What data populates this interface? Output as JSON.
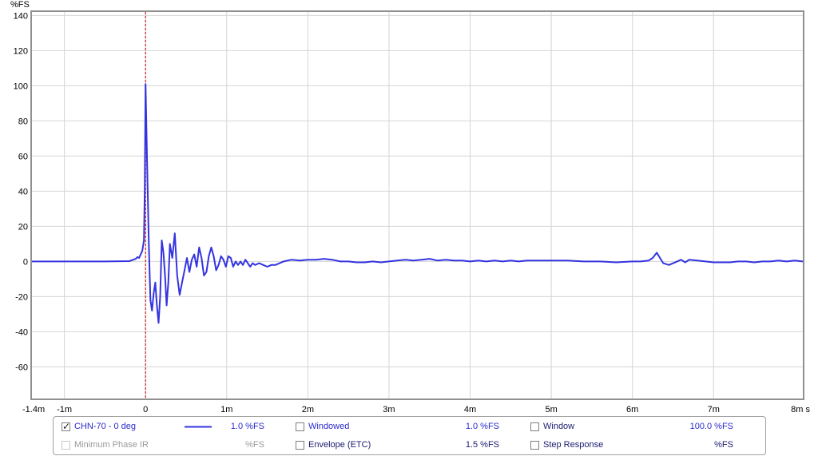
{
  "chart_data": {
    "type": "line",
    "ylabel": "%FS",
    "xunit": "s",
    "xlim": [
      -0.0014,
      0.0081
    ],
    "ylim": [
      -78,
      142
    ],
    "grid": true,
    "yticks": [
      140,
      120,
      100,
      80,
      60,
      40,
      20,
      0,
      -20,
      -40,
      -60
    ],
    "xticks": [
      {
        "v": -0.0014,
        "label": "-1.4m"
      },
      {
        "v": -0.001,
        "label": "-1m"
      },
      {
        "v": 0,
        "label": "0"
      },
      {
        "v": 0.001,
        "label": "1m"
      },
      {
        "v": 0.002,
        "label": "2m"
      },
      {
        "v": 0.003,
        "label": "3m"
      },
      {
        "v": 0.004,
        "label": "4m"
      },
      {
        "v": 0.005,
        "label": "5m"
      },
      {
        "v": 0.006,
        "label": "6m"
      },
      {
        "v": 0.007,
        "label": "7m"
      },
      {
        "v": 0.0081,
        "label": "8m s"
      }
    ],
    "cursor_x": 0,
    "series": [
      {
        "name": "CHN-70 - 0 deg",
        "color": "#3434e0",
        "points": [
          [
            -0.0014,
            0
          ],
          [
            -0.001,
            0
          ],
          [
            -0.0005,
            0
          ],
          [
            -0.0002,
            0.2
          ],
          [
            -0.00012,
            1.5
          ],
          [
            -0.0001,
            2.5
          ],
          [
            -8e-05,
            2
          ],
          [
            -6e-05,
            4
          ],
          [
            -4e-05,
            6
          ],
          [
            -2e-05,
            12
          ],
          [
            -1e-05,
            40
          ],
          [
            0.0,
            101
          ],
          [
            2e-05,
            55
          ],
          [
            4e-05,
            10
          ],
          [
            6e-05,
            -22
          ],
          [
            8e-05,
            -28
          ],
          [
            0.0001,
            -18
          ],
          [
            0.00012,
            -12
          ],
          [
            0.00014,
            -25
          ],
          [
            0.00016,
            -35
          ],
          [
            0.00018,
            -20
          ],
          [
            0.0002,
            12
          ],
          [
            0.00022,
            5
          ],
          [
            0.00024,
            -8
          ],
          [
            0.00026,
            -25
          ],
          [
            0.00028,
            -12
          ],
          [
            0.0003,
            10
          ],
          [
            0.00033,
            2
          ],
          [
            0.00036,
            16
          ],
          [
            0.00039,
            -8
          ],
          [
            0.00042,
            -19
          ],
          [
            0.00045,
            -12
          ],
          [
            0.00048,
            -5
          ],
          [
            0.00051,
            2
          ],
          [
            0.00054,
            -6
          ],
          [
            0.00057,
            1
          ],
          [
            0.0006,
            4
          ],
          [
            0.00063,
            -3
          ],
          [
            0.00066,
            8
          ],
          [
            0.00069,
            2
          ],
          [
            0.00072,
            -8
          ],
          [
            0.00075,
            -6
          ],
          [
            0.00078,
            3
          ],
          [
            0.00081,
            8
          ],
          [
            0.00084,
            3
          ],
          [
            0.00087,
            -5
          ],
          [
            0.0009,
            -2
          ],
          [
            0.00093,
            3
          ],
          [
            0.00096,
            1
          ],
          [
            0.00099,
            -3
          ],
          [
            0.00102,
            3
          ],
          [
            0.00105,
            2
          ],
          [
            0.00108,
            -3
          ],
          [
            0.00111,
            0
          ],
          [
            0.00114,
            -2
          ],
          [
            0.00117,
            0
          ],
          [
            0.0012,
            -2
          ],
          [
            0.00123,
            1
          ],
          [
            0.00126,
            -1
          ],
          [
            0.00129,
            -3
          ],
          [
            0.00132,
            -1
          ],
          [
            0.00135,
            -2
          ],
          [
            0.0014,
            -1
          ],
          [
            0.00145,
            -2
          ],
          [
            0.0015,
            -3
          ],
          [
            0.00155,
            -2
          ],
          [
            0.0016,
            -2
          ],
          [
            0.0017,
            0
          ],
          [
            0.0018,
            1
          ],
          [
            0.0019,
            0.5
          ],
          [
            0.002,
            1
          ],
          [
            0.0021,
            1
          ],
          [
            0.0022,
            1.5
          ],
          [
            0.0023,
            1
          ],
          [
            0.0024,
            0
          ],
          [
            0.0025,
            0
          ],
          [
            0.0026,
            -0.5
          ],
          [
            0.0027,
            -0.5
          ],
          [
            0.0028,
            0
          ],
          [
            0.0029,
            -0.5
          ],
          [
            0.003,
            0
          ],
          [
            0.0031,
            0.5
          ],
          [
            0.0032,
            1
          ],
          [
            0.0033,
            0.5
          ],
          [
            0.0034,
            1
          ],
          [
            0.0035,
            1.5
          ],
          [
            0.0036,
            0.5
          ],
          [
            0.0037,
            1
          ],
          [
            0.0038,
            0.5
          ],
          [
            0.0039,
            0.5
          ],
          [
            0.004,
            0
          ],
          [
            0.0041,
            0.5
          ],
          [
            0.0042,
            0
          ],
          [
            0.0043,
            0.5
          ],
          [
            0.0044,
            0
          ],
          [
            0.0045,
            0.5
          ],
          [
            0.0046,
            0
          ],
          [
            0.0047,
            0.5
          ],
          [
            0.0048,
            0.5
          ],
          [
            0.0049,
            0.5
          ],
          [
            0.005,
            0.5
          ],
          [
            0.0052,
            0.5
          ],
          [
            0.0054,
            0
          ],
          [
            0.0056,
            0
          ],
          [
            0.0058,
            -0.5
          ],
          [
            0.006,
            0
          ],
          [
            0.0061,
            0
          ],
          [
            0.0062,
            0.5
          ],
          [
            0.00625,
            2
          ],
          [
            0.0063,
            5
          ],
          [
            0.00634,
            2
          ],
          [
            0.00638,
            -1
          ],
          [
            0.00645,
            -2
          ],
          [
            0.00655,
            0
          ],
          [
            0.0066,
            1
          ],
          [
            0.00665,
            -0.5
          ],
          [
            0.0067,
            1
          ],
          [
            0.0068,
            0.5
          ],
          [
            0.0069,
            0
          ],
          [
            0.007,
            -0.5
          ],
          [
            0.0071,
            -0.5
          ],
          [
            0.0072,
            -0.5
          ],
          [
            0.0073,
            0
          ],
          [
            0.0074,
            0
          ],
          [
            0.0075,
            -0.5
          ],
          [
            0.0076,
            0
          ],
          [
            0.0077,
            0
          ],
          [
            0.0078,
            0.5
          ],
          [
            0.0079,
            0
          ],
          [
            0.008,
            0.5
          ],
          [
            0.0081,
            0
          ]
        ]
      }
    ]
  },
  "legend": {
    "series_name": "CHN-70 - 0 deg",
    "series_scale": "1.0 %FS",
    "min_phase_label": "Minimum Phase IR",
    "min_phase_scale": "%FS",
    "windowed_label": "Windowed",
    "windowed_scale": "1.0 %FS",
    "envelope_label": "Envelope (ETC)",
    "envelope_scale": "1.5 %FS",
    "window_label": "Window",
    "window_scale": "100.0 %FS",
    "step_label": "Step Response",
    "step_scale": "%FS"
  },
  "colors": {
    "trace": "#3434e0",
    "cursor": "#cc2222",
    "grid": "#d4d4d4"
  }
}
